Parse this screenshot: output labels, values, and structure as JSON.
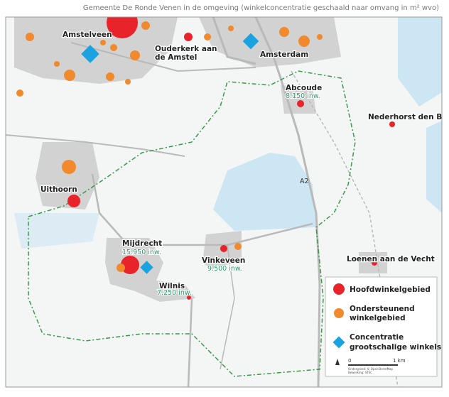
{
  "caption": "Gemeente De Ronde Venen in de omgeving (winkelconcentratie geschaald naar omvang in m² wvo)",
  "places": [
    {
      "lines": [
        "Amstelveen"
      ]
    },
    {
      "lines": [
        "Ouderkerk aan",
        "de Amstel"
      ]
    },
    {
      "lines": [
        "Amsterdam"
      ]
    },
    {
      "lines": [
        "Abcoude"
      ],
      "population": "8.150 inw."
    },
    {
      "lines": [
        "Nederhorst den Berg"
      ]
    },
    {
      "lines": [
        "Uithoorn"
      ]
    },
    {
      "lines": [
        "Mijdrecht"
      ],
      "population": "15.950 inw."
    },
    {
      "lines": [
        "Vinkeveen"
      ],
      "population": "9.500 inw."
    },
    {
      "lines": [
        "Wilnis"
      ],
      "population": "7.250 inw."
    },
    {
      "lines": [
        "Loenen aan de Vecht"
      ]
    }
  ],
  "road": "A2",
  "legend": [
    {
      "lines": [
        "Hoofdwinkelgebied"
      ]
    },
    {
      "lines": [
        "Ondersteunend",
        "winkelgebied"
      ]
    },
    {
      "lines": [
        "Concentratie",
        "grootschalige winkels"
      ]
    }
  ],
  "scale": {
    "start": "0",
    "end": "1 km"
  },
  "credits": [
    "Ondergrond: © OpenStreetMap",
    "Bewerking: STEC"
  ]
}
